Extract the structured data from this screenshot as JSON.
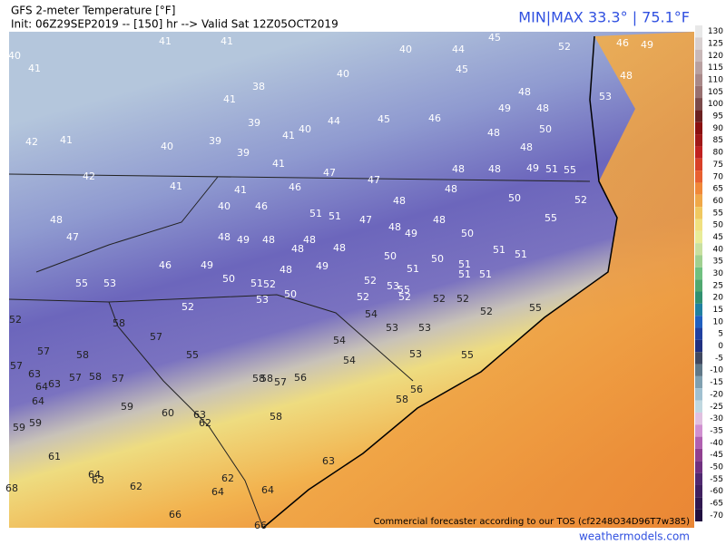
{
  "header": {
    "title": "GFS 2-meter Temperature [°F]",
    "subtitle": "Init: 06Z29SEP2019 -- [150] hr --> Valid Sat 12Z05OCT2019",
    "minmax": "MIN|MAX 33.3° | 75.1°F"
  },
  "stations": [
    41,
    41,
    40,
    41,
    38,
    40,
    40,
    44,
    45,
    46,
    49,
    52,
    45,
    48,
    41,
    53,
    48,
    49,
    48,
    44,
    45,
    46,
    39,
    41,
    40,
    48,
    50,
    42,
    41,
    40,
    39,
    39,
    48,
    41,
    47,
    47,
    48,
    48,
    49,
    51,
    55,
    42,
    41,
    41,
    46,
    48,
    48,
    50,
    52,
    40,
    46,
    51,
    51,
    47,
    48,
    48,
    55,
    48,
    47,
    48,
    49,
    48,
    48,
    48,
    49,
    50,
    48,
    50,
    50,
    51,
    51,
    51,
    51,
    51,
    51,
    46,
    49,
    49,
    48,
    50,
    51,
    52,
    50,
    52,
    53,
    55,
    55,
    53,
    52,
    53,
    52,
    52,
    52,
    52,
    54,
    52,
    55,
    52,
    58,
    57,
    53,
    53,
    54,
    55,
    54,
    53,
    55,
    57,
    58,
    57,
    63,
    64,
    63,
    64,
    57,
    58,
    57,
    58,
    58,
    57,
    56,
    56,
    58,
    59,
    60,
    63,
    62,
    58,
    59,
    59,
    61,
    63,
    64,
    63,
    62,
    62,
    64,
    68,
    64,
    66,
    66
  ],
  "colorbar": {
    "ticks": [
      130,
      125,
      120,
      115,
      110,
      105,
      100,
      95,
      90,
      85,
      80,
      75,
      70,
      65,
      60,
      55,
      50,
      45,
      40,
      35,
      30,
      25,
      20,
      15,
      10,
      5,
      0,
      -5,
      -10,
      -15,
      -20,
      -25,
      -30,
      -35,
      -40,
      -45,
      -50,
      -55,
      -60,
      -65,
      -70
    ]
  },
  "footer": {
    "tos": "Commercial forecaster according to our TOS (cf2248O34D96T7w385)",
    "site": "weathermodels.com"
  }
}
